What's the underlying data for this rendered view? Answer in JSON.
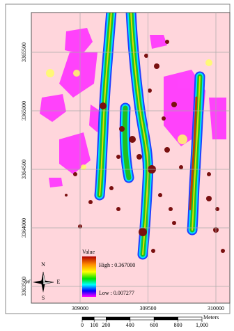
{
  "map": {
    "x_ticks": [
      309000,
      309500,
      310000
    ],
    "y_ticks": [
      3365500,
      3365000,
      3364500,
      3364000,
      3363500
    ],
    "legend": {
      "title": "Value",
      "high": "High : 0.367000",
      "low": "Low : 0.007277"
    },
    "scale_bar": {
      "unit": "Meters",
      "ticks": [
        0,
        100,
        200,
        400,
        600,
        800,
        {
          "value": 1000,
          "label": "1,000"
        }
      ]
    },
    "north_arrow": {
      "n": "N",
      "e": "E",
      "s": "S",
      "w": "W"
    }
  }
}
